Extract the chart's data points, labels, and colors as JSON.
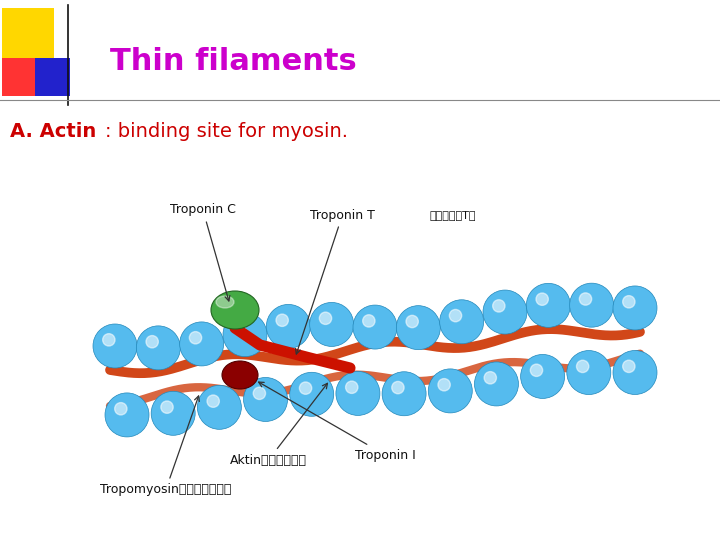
{
  "title": "Thin filaments",
  "title_color": "#CC00CC",
  "title_fontsize": 22,
  "subtitle_bold_part": "A. Actin",
  "subtitle_normal_part": ": binding site for myosin.",
  "subtitle_color": "#CC0000",
  "subtitle_fontsize": 14,
  "bg_color": "#FFFFFF",
  "deco_yellow_color": "#FFD700",
  "deco_red_color": "#FF3333",
  "deco_blue_color": "#2222CC",
  "separator_color": "#888888",
  "bead_color": "#55BBEE",
  "bead_edge_color": "#2288BB",
  "troponin_c_color": "#44AA44",
  "troponin_i_color": "#8B0000",
  "troponin_t_color": "#CC1100",
  "tropomyosin_color": "#CC3300",
  "label_fontsize": 8,
  "label_color": "#111111"
}
